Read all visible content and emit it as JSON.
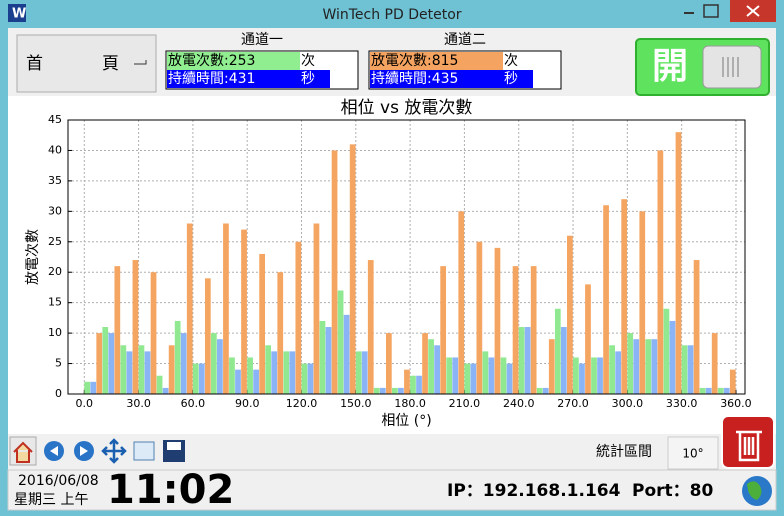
{
  "window": {
    "title": "WinTech PD Detetor"
  },
  "home_button": {
    "left": "首",
    "right": "頁"
  },
  "channels": [
    {
      "title": "通道一",
      "count_label": "放電次數:253",
      "count_unit": "次",
      "duration_label": "持續時間:431",
      "duration_unit": "秒"
    },
    {
      "title": "通道二",
      "count_label": "放電次數:815",
      "count_unit": "次",
      "duration_label": "持續時間:435",
      "duration_unit": "秒"
    }
  ],
  "toggle": {
    "label": "開"
  },
  "chart_data": {
    "type": "bar",
    "title": "相位 vs 放電次數",
    "xlabel": "相位 (°)",
    "ylabel": "放電次數",
    "x": [
      0,
      10,
      20,
      30,
      40,
      50,
      60,
      70,
      80,
      90,
      100,
      110,
      120,
      130,
      140,
      150,
      160,
      170,
      180,
      190,
      200,
      210,
      220,
      230,
      240,
      250,
      260,
      270,
      280,
      290,
      300,
      310,
      320,
      330,
      340,
      350
    ],
    "bin_width": 10,
    "series": [
      {
        "color": "#90e890",
        "values": [
          2,
          11,
          8,
          8,
          3,
          12,
          5,
          10,
          6,
          6,
          8,
          7,
          5,
          12,
          17,
          7,
          1,
          1,
          3,
          9,
          6,
          5,
          7,
          6,
          11,
          1,
          14,
          6,
          6,
          8,
          10,
          9,
          14,
          8,
          1,
          1
        ]
      },
      {
        "color": "#8ab4f5",
        "values": [
          2,
          10,
          7,
          7,
          1,
          10,
          5,
          9,
          4,
          4,
          7,
          7,
          5,
          11,
          13,
          7,
          1,
          1,
          3,
          8,
          6,
          5,
          6,
          5,
          11,
          1,
          11,
          5,
          6,
          7,
          9,
          9,
          12,
          8,
          1,
          1
        ]
      },
      {
        "color": "#f5a562",
        "values": [
          10,
          21,
          22,
          20,
          8,
          28,
          19,
          28,
          27,
          23,
          20,
          25,
          28,
          40,
          41,
          22,
          10,
          4,
          10,
          21,
          30,
          25,
          24,
          21,
          21,
          9,
          26,
          18,
          31,
          32,
          30,
          40,
          43,
          22,
          10,
          4
        ]
      }
    ],
    "xlim": [
      -9,
      365
    ],
    "ylim": [
      0,
      45
    ],
    "xticks": [
      {
        "value": 0,
        "label": "0.0"
      },
      {
        "value": 30,
        "label": "30.0"
      },
      {
        "value": 60,
        "label": "60.0"
      },
      {
        "value": 90,
        "label": "90.0"
      },
      {
        "value": 120,
        "label": "120.0"
      },
      {
        "value": 150,
        "label": "150.0"
      },
      {
        "value": 180,
        "label": "180.0"
      },
      {
        "value": 210,
        "label": "210.0"
      },
      {
        "value": 240,
        "label": "240.0"
      },
      {
        "value": 270,
        "label": "270.0"
      },
      {
        "value": 300,
        "label": "300.0"
      },
      {
        "value": 330,
        "label": "330.0"
      },
      {
        "value": 360,
        "label": "360.0"
      }
    ],
    "yticks": [
      0,
      5,
      10,
      15,
      20,
      25,
      30,
      35,
      40,
      45
    ],
    "grid": true
  },
  "toolbar": {
    "interval_label": "統計區間",
    "interval_value": "10°"
  },
  "status": {
    "date": "2016/06/08",
    "weekday": "星期三 上午",
    "time": "11:02",
    "ip": "IP：192.168.1.164",
    "port": "Port：80"
  }
}
